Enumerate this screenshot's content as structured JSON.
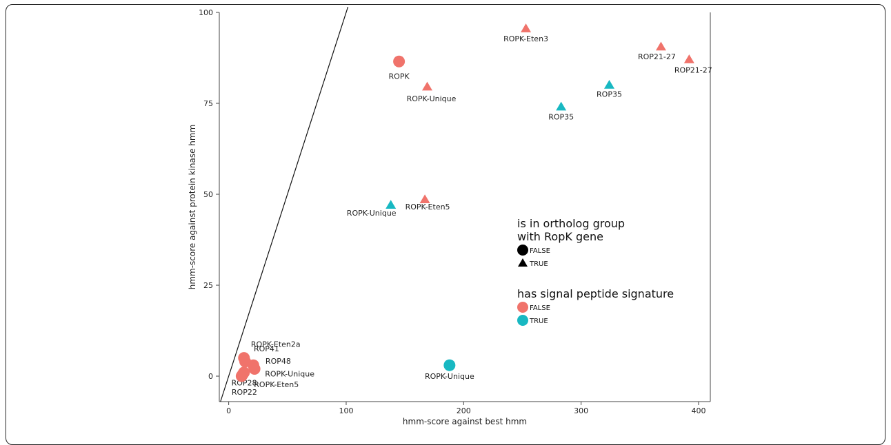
{
  "chart_data": {
    "type": "scatter",
    "xlabel": "hmm-score against best hmm",
    "ylabel": "hmm-score against protein kinase hmm",
    "xlim": [
      -8,
      410
    ],
    "ylim": [
      -7,
      100
    ],
    "xticks": [
      0,
      100,
      200,
      300,
      400
    ],
    "yticks": [
      0,
      25,
      50,
      75,
      100
    ],
    "grid": false,
    "reference_line": {
      "slope": 1,
      "intercept": 0
    },
    "colors": {
      "FALSE": "#F0736B",
      "TRUE": "#18B8C2"
    },
    "points": [
      {
        "x": 253,
        "y": 95.5,
        "shape": "triangle",
        "color": "FALSE",
        "label": "ROPK-Eten3"
      },
      {
        "x": 368,
        "y": 90.5,
        "shape": "triangle",
        "color": "FALSE",
        "label": "ROP21-27"
      },
      {
        "x": 392,
        "y": 87,
        "shape": "triangle",
        "color": "FALSE",
        "label": "ROP21-27"
      },
      {
        "x": 145,
        "y": 86.5,
        "shape": "circle",
        "color": "FALSE",
        "label": "ROPK"
      },
      {
        "x": 169,
        "y": 79.5,
        "shape": "triangle",
        "color": "FALSE",
        "label": "ROPK-Unique"
      },
      {
        "x": 324,
        "y": 80,
        "shape": "triangle",
        "color": "TRUE",
        "label": "ROP35"
      },
      {
        "x": 283,
        "y": 74,
        "shape": "triangle",
        "color": "TRUE",
        "label": "ROP35"
      },
      {
        "x": 167,
        "y": 48.5,
        "shape": "triangle",
        "color": "FALSE",
        "label": "ROPK-Eten5"
      },
      {
        "x": 138,
        "y": 47,
        "shape": "triangle",
        "color": "TRUE",
        "label": "ROPK-Unique"
      },
      {
        "x": 188,
        "y": 3,
        "shape": "circle",
        "color": "TRUE",
        "label": "ROPK-Unique"
      },
      {
        "x": 13,
        "y": 5,
        "shape": "circle",
        "color": "FALSE",
        "label": "ROPK-Eten2a"
      },
      {
        "x": 14,
        "y": 4,
        "shape": "circle",
        "color": "FALSE",
        "label": "ROP41"
      },
      {
        "x": 21,
        "y": 3,
        "shape": "circle",
        "color": "FALSE",
        "label": "ROP48"
      },
      {
        "x": 22,
        "y": 2,
        "shape": "circle",
        "color": "FALSE",
        "label": "ROPK-Unique"
      },
      {
        "x": 13,
        "y": 1,
        "shape": "circle",
        "color": "FALSE",
        "label": "ROPK-Eten5"
      },
      {
        "x": 12,
        "y": 0.5,
        "shape": "circle",
        "color": "FALSE",
        "label": "ROP28"
      },
      {
        "x": 11,
        "y": 0,
        "shape": "circle",
        "color": "FALSE",
        "label": "ROP22"
      }
    ],
    "legends": [
      {
        "title_lines": [
          "is in ortholog group",
          "with RopK gene"
        ],
        "items": [
          {
            "label": "FALSE",
            "shape": "circle",
            "color": "#000000"
          },
          {
            "label": "TRUE",
            "shape": "triangle",
            "color": "#000000"
          }
        ]
      },
      {
        "title_lines": [
          "has signal peptide signature"
        ],
        "items": [
          {
            "label": "FALSE",
            "shape": "circle",
            "color": "#F0736B"
          },
          {
            "label": "TRUE",
            "shape": "circle",
            "color": "#18B8C2"
          }
        ]
      }
    ]
  }
}
